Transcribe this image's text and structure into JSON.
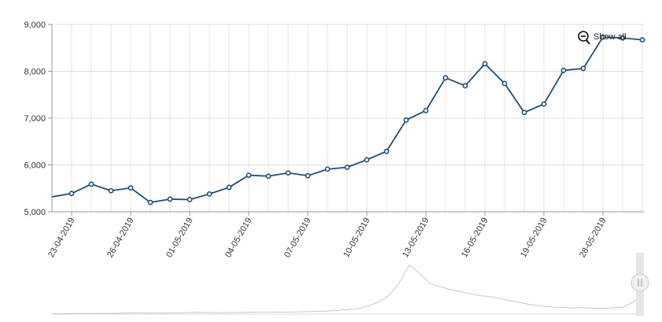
{
  "chart_data": {
    "type": "line",
    "title": "",
    "xlabel": "",
    "ylabel": "",
    "ylim": [
      5000,
      9000
    ],
    "yticks": [
      "5,000",
      "6,000",
      "7,000",
      "8,000",
      "9,000"
    ],
    "ytick_values": [
      5000,
      6000,
      7000,
      8000,
      9000
    ],
    "xtick_labels": [
      "23-04-2019",
      "26-04-2019",
      "01-05-2019",
      "04-05-2019",
      "07-05-2019",
      "10-05-2019",
      "13-05-2019",
      "16-05-2019",
      "19-05-2019",
      "28-05-2019"
    ],
    "xtick_indices": [
      1,
      4,
      7,
      10,
      13,
      16,
      19,
      22,
      25,
      28
    ],
    "grid": true,
    "line_color": "#1f4e79",
    "series": [
      {
        "values": [
          5320,
          5390,
          5590,
          5450,
          5510,
          5200,
          5270,
          5260,
          5380,
          5520,
          5780,
          5760,
          5830,
          5770,
          5910,
          5950,
          6110,
          6290,
          6960,
          7160,
          7860,
          7690,
          8160,
          7740,
          7120,
          7300,
          8020,
          8060,
          8730,
          8710,
          8670
        ]
      }
    ]
  },
  "zoom": {
    "show_all_label": "Show all",
    "icon": "zoom-out-icon"
  },
  "navigator": {
    "values": [
      0.5,
      0.5,
      0.6,
      0.6,
      0.7,
      0.8,
      0.8,
      1.0,
      1.2,
      1.1,
      1.0,
      1.0,
      1.2,
      1.5,
      1.8,
      1.6,
      1.5,
      1.5,
      1.6,
      1.7,
      1.8,
      2.0,
      2.1,
      2.0,
      2.2,
      2.4,
      2.6,
      3.0,
      3.5,
      4.5,
      5.5,
      8.0,
      12.0,
      18.0,
      30.0,
      48.0,
      40.0,
      30.0,
      27.0,
      24.0,
      22.0,
      20.0,
      18.0,
      17.0,
      15.0,
      13.0,
      11.0,
      9.0,
      8.0,
      7.0,
      6.5,
      6.0,
      6.4,
      6.0,
      5.6,
      6.2,
      7.0,
      12.0,
      22.0
    ],
    "max": 60
  }
}
